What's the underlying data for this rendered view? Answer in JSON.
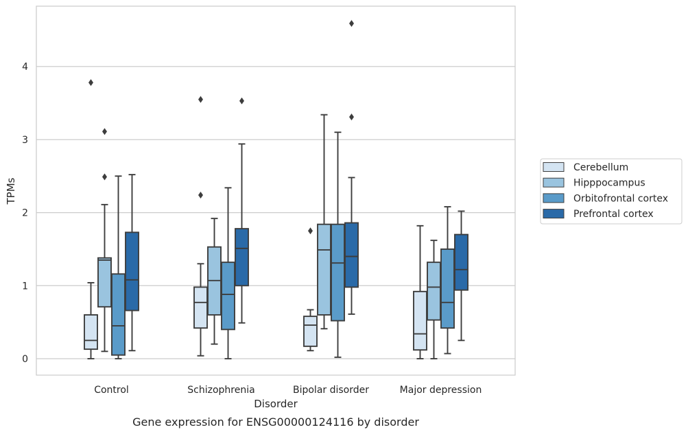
{
  "chart_data": {
    "type": "box",
    "caption": "Gene expression for ENSG00000124116 by disorder",
    "xlabel": "Disorder",
    "ylabel": "TPMs",
    "ylim": [
      -0.22,
      4.85
    ],
    "yticks": [
      "0",
      "1",
      "2",
      "3",
      "4"
    ],
    "grid": "horizontal",
    "legend_position": "right",
    "categories": [
      "Control",
      "Schizophrenia",
      "Bipolar disorder",
      "Major depression"
    ],
    "series": [
      {
        "name": "Cerebellum",
        "color": "#d4e4f2",
        "boxes": [
          {
            "whislo": 0.0,
            "q1": 0.13,
            "med": 0.25,
            "q3": 0.6,
            "whishi": 1.04,
            "fliers": [
              3.78
            ]
          },
          {
            "whislo": 0.04,
            "q1": 0.42,
            "med": 0.77,
            "q3": 0.98,
            "whishi": 1.3,
            "fliers": [
              2.24,
              3.55
            ]
          },
          {
            "whislo": 0.11,
            "q1": 0.17,
            "med": 0.46,
            "q3": 0.58,
            "whishi": 0.67,
            "fliers": [
              1.75
            ]
          },
          {
            "whislo": 0.0,
            "q1": 0.12,
            "med": 0.34,
            "q3": 0.92,
            "whishi": 1.82,
            "fliers": []
          }
        ]
      },
      {
        "name": "Hipppocampus",
        "color": "#9ac4df",
        "boxes": [
          {
            "whislo": 0.1,
            "q1": 0.71,
            "med": 1.35,
            "q3": 1.38,
            "whishi": 2.11,
            "fliers": [
              2.49,
              3.11
            ]
          },
          {
            "whislo": 0.2,
            "q1": 0.6,
            "med": 1.07,
            "q3": 1.53,
            "whishi": 1.92,
            "fliers": []
          },
          {
            "whislo": 0.41,
            "q1": 0.6,
            "med": 1.49,
            "q3": 1.84,
            "whishi": 3.34,
            "fliers": []
          },
          {
            "whislo": 0.0,
            "q1": 0.53,
            "med": 0.98,
            "q3": 1.32,
            "whishi": 1.62,
            "fliers": []
          }
        ]
      },
      {
        "name": "Orbitofrontal cortex",
        "color": "#5a9bc9",
        "boxes": [
          {
            "whislo": 0.0,
            "q1": 0.05,
            "med": 0.45,
            "q3": 1.16,
            "whishi": 2.5,
            "fliers": []
          },
          {
            "whislo": 0.0,
            "q1": 0.4,
            "med": 0.88,
            "q3": 1.32,
            "whishi": 2.34,
            "fliers": []
          },
          {
            "whislo": 0.02,
            "q1": 0.52,
            "med": 1.31,
            "q3": 1.84,
            "whishi": 3.1,
            "fliers": []
          },
          {
            "whislo": 0.07,
            "q1": 0.42,
            "med": 0.77,
            "q3": 1.5,
            "whishi": 2.08,
            "fliers": []
          }
        ]
      },
      {
        "name": "Prefrontal cortex",
        "color": "#2a6aa8",
        "boxes": [
          {
            "whislo": 0.11,
            "q1": 0.66,
            "med": 1.08,
            "q3": 1.73,
            "whishi": 2.52,
            "fliers": []
          },
          {
            "whislo": 0.49,
            "q1": 1.0,
            "med": 1.51,
            "q3": 1.78,
            "whishi": 2.94,
            "fliers": [
              3.53
            ]
          },
          {
            "whislo": 0.61,
            "q1": 0.98,
            "med": 1.4,
            "q3": 1.86,
            "whishi": 2.48,
            "fliers": [
              3.31,
              4.59
            ]
          },
          {
            "whislo": 0.25,
            "q1": 0.94,
            "med": 1.22,
            "q3": 1.7,
            "whishi": 2.02,
            "fliers": []
          }
        ]
      }
    ]
  }
}
